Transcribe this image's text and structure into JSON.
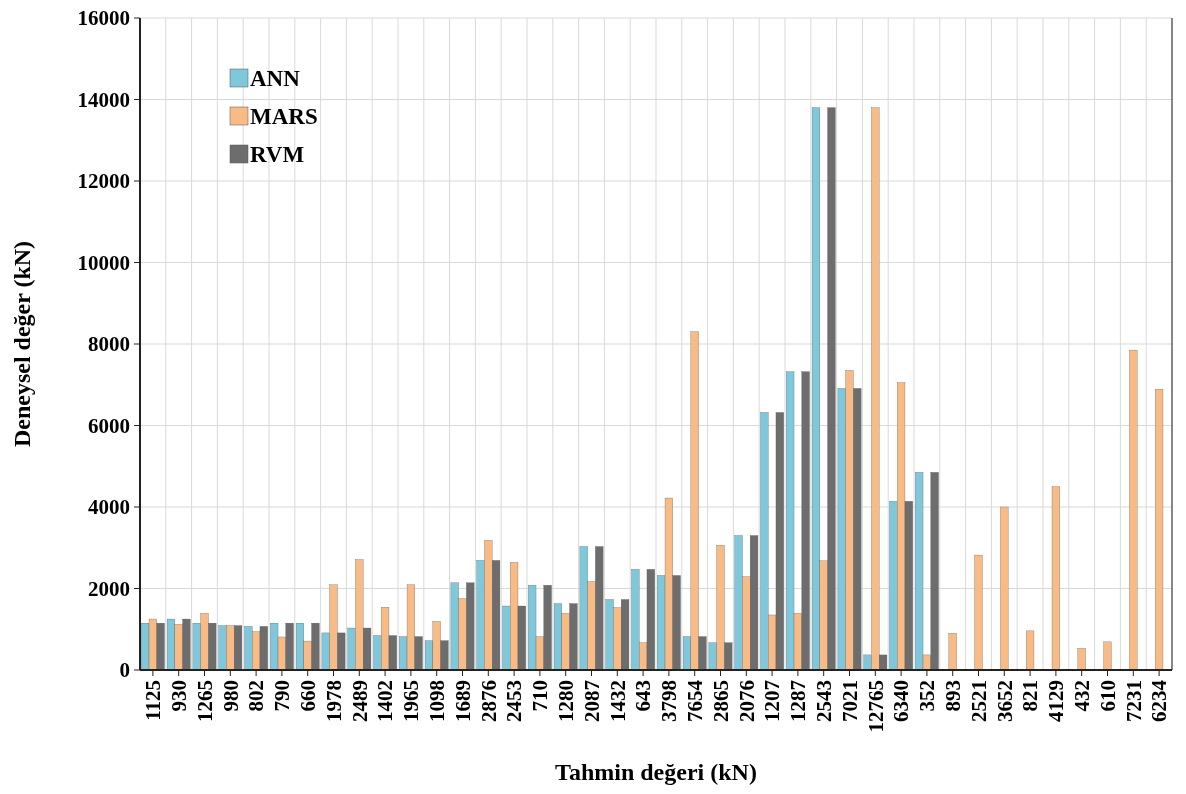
{
  "chart_data": {
    "type": "bar",
    "xlabel": "Tahmin değeri (kN)",
    "ylabel": "Deneysel değer (kN)",
    "categories": [
      "1125",
      "930",
      "1265",
      "980",
      "802",
      "790",
      "660",
      "1978",
      "2489",
      "1402",
      "1965",
      "1098",
      "1689",
      "2876",
      "2453",
      "710",
      "1280",
      "2087",
      "1432",
      "643",
      "3798",
      "7654",
      "2865",
      "2076",
      "1207",
      "1287",
      "2543",
      "7021",
      "12765",
      "6340",
      "352",
      "893",
      "2521",
      "3652",
      "821",
      "4129",
      "432",
      "610",
      "7231",
      "6234"
    ],
    "series": [
      {
        "name": "ANN",
        "color": "#7fc8dc",
        "values": [
          1150,
          1250,
          1150,
          1090,
          1070,
          1150,
          1150,
          910,
          1030,
          845,
          820,
          720,
          2140,
          2690,
          1570,
          2080,
          1630,
          3030,
          1730,
          2470,
          2320,
          820,
          670,
          3300,
          6320,
          7320,
          13800,
          6910,
          370,
          4140,
          4850,
          null,
          null,
          null,
          null,
          null,
          null,
          null,
          null,
          null
        ]
      },
      {
        "name": "MARS",
        "color": "#f9bb86",
        "values": [
          1250,
          1120,
          1390,
          1090,
          940,
          810,
          710,
          2090,
          2710,
          1540,
          2090,
          1190,
          1750,
          3180,
          2640,
          820,
          1390,
          2170,
          1530,
          670,
          4220,
          8300,
          3060,
          2290,
          1350,
          1390,
          2680,
          7350,
          13800,
          7050,
          370,
          900,
          2820,
          4000,
          960,
          4500,
          530,
          690,
          7850,
          6890
        ]
      },
      {
        "name": "RVM",
        "color": "#6d6d6d",
        "values": [
          1150,
          1250,
          1150,
          1090,
          1070,
          1150,
          1150,
          910,
          1030,
          845,
          820,
          720,
          2140,
          2690,
          1570,
          2080,
          1630,
          3030,
          1730,
          2470,
          2320,
          820,
          670,
          3300,
          6320,
          7320,
          13800,
          6910,
          370,
          4140,
          4850,
          null,
          null,
          null,
          null,
          null,
          null,
          null,
          null,
          null
        ]
      }
    ],
    "ylim": [
      0,
      16000
    ],
    "yticks": [
      0,
      2000,
      4000,
      6000,
      8000,
      10000,
      12000,
      14000,
      16000
    ],
    "grid": true,
    "legend": "top left"
  }
}
